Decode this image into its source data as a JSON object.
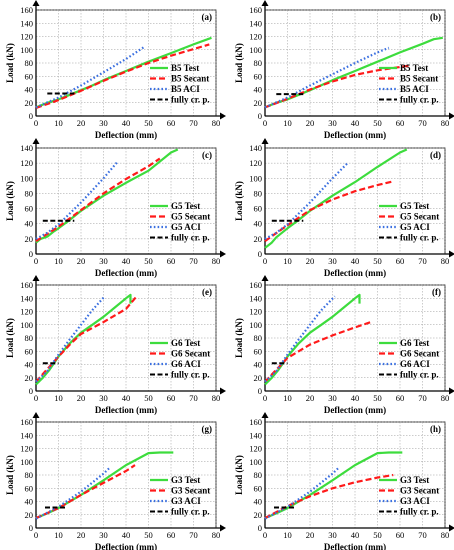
{
  "colors": {
    "test": "#3ddc3d",
    "secant": "#ff1a1a",
    "aci": "#3a6fe0",
    "fully": "#000000"
  },
  "chart_data": [
    {
      "panel_label": "(a)",
      "type": "line",
      "xlabel": "Deflection (mm)",
      "ylabel": "Load (kN)",
      "xlim": [
        0,
        80
      ],
      "ylim": [
        0,
        160
      ],
      "xticks": [
        0,
        10,
        20,
        30,
        40,
        50,
        60,
        70,
        80
      ],
      "yticks": [
        0,
        20,
        40,
        60,
        80,
        100,
        120,
        140,
        160
      ],
      "series": [
        {
          "name": "B5 Test",
          "style": "test",
          "x": [
            0,
            5,
            10,
            15,
            20,
            25,
            30,
            40,
            50,
            60,
            70,
            78
          ],
          "y": [
            13,
            20,
            25,
            32,
            39,
            46,
            54,
            68,
            82,
            95,
            108,
            118
          ]
        },
        {
          "name": "B5 Secant",
          "style": "secant",
          "x": [
            0,
            10,
            20,
            30,
            40,
            50,
            60,
            70,
            77
          ],
          "y": [
            12,
            24,
            38,
            53,
            67,
            80,
            91,
            101,
            108
          ]
        },
        {
          "name": "B5 ACI",
          "style": "aci",
          "x": [
            0,
            10,
            20,
            30,
            40,
            48
          ],
          "y": [
            13,
            28,
            46,
            66,
            86,
            104
          ]
        },
        {
          "name": "fully cr. p.",
          "style": "fully",
          "x": [
            5,
            17
          ],
          "y": [
            34,
            34
          ]
        }
      ]
    },
    {
      "panel_label": "(b)",
      "type": "line",
      "xlabel": "Deflection (mm)",
      "ylabel": "Load (kN)",
      "xlim": [
        0,
        80
      ],
      "ylim": [
        0,
        160
      ],
      "xticks": [
        0,
        10,
        20,
        30,
        40,
        50,
        60,
        70,
        80
      ],
      "yticks": [
        0,
        20,
        40,
        60,
        80,
        100,
        120,
        140,
        160
      ],
      "series": [
        {
          "name": "B5 Test",
          "style": "test",
          "x": [
            0,
            5,
            10,
            15,
            20,
            30,
            40,
            50,
            60,
            70,
            75,
            79
          ],
          "y": [
            13,
            20,
            25,
            32,
            39,
            54,
            68,
            82,
            96,
            109,
            116,
            118
          ]
        },
        {
          "name": "B5 Secant",
          "style": "secant",
          "x": [
            0,
            10,
            20,
            30,
            40,
            50,
            60,
            64
          ],
          "y": [
            13,
            26,
            40,
            52,
            62,
            69,
            74,
            76
          ]
        },
        {
          "name": "B5 ACI",
          "style": "aci",
          "x": [
            0,
            10,
            20,
            30,
            40,
            50,
            55
          ],
          "y": [
            13,
            28,
            46,
            63,
            80,
            96,
            103
          ]
        },
        {
          "name": "fully cr. p.",
          "style": "fully",
          "x": [
            5,
            17
          ],
          "y": [
            33,
            33
          ]
        }
      ]
    },
    {
      "panel_label": "(c)",
      "type": "line",
      "xlabel": "Deflection (mm)",
      "ylabel": "Load (kN)",
      "xlim": [
        0,
        80
      ],
      "ylim": [
        0,
        140
      ],
      "xticks": [
        0,
        10,
        20,
        30,
        40,
        50,
        60,
        70,
        80
      ],
      "yticks": [
        0,
        20,
        40,
        60,
        80,
        100,
        120,
        140
      ],
      "series": [
        {
          "name": "G5 Test",
          "style": "test",
          "x": [
            0,
            2,
            5,
            8,
            10,
            15,
            20,
            30,
            40,
            50,
            60,
            63
          ],
          "y": [
            15,
            20,
            23,
            30,
            34,
            45,
            57,
            77,
            94,
            110,
            134,
            138
          ]
        },
        {
          "name": "G5 Secant",
          "style": "secant",
          "x": [
            0,
            10,
            20,
            30,
            40,
            50,
            55
          ],
          "y": [
            17,
            36,
            58,
            80,
            99,
            116,
            126
          ]
        },
        {
          "name": "G5 ACI",
          "style": "aci",
          "x": [
            0,
            5,
            10,
            20,
            30,
            36
          ],
          "y": [
            20,
            28,
            39,
            68,
            100,
            121
          ]
        },
        {
          "name": "fully cr. p.",
          "style": "fully",
          "x": [
            3,
            17
          ],
          "y": [
            44,
            44
          ]
        }
      ]
    },
    {
      "panel_label": "(d)",
      "type": "line",
      "xlabel": "Deflection (mm)",
      "ylabel": "Load (kN)",
      "xlim": [
        0,
        80
      ],
      "ylim": [
        0,
        140
      ],
      "xticks": [
        0,
        10,
        20,
        30,
        40,
        50,
        60,
        70,
        80
      ],
      "yticks": [
        0,
        20,
        40,
        60,
        80,
        100,
        120,
        140
      ],
      "series": [
        {
          "name": "G5 Test",
          "style": "test",
          "x": [
            0,
            3,
            5,
            10,
            15,
            20,
            30,
            40,
            50,
            60,
            63
          ],
          "y": [
            8,
            15,
            22,
            34,
            45,
            57,
            77,
            95,
            115,
            134,
            138
          ]
        },
        {
          "name": "G5 Secant",
          "style": "secant",
          "x": [
            0,
            10,
            20,
            30,
            40,
            50,
            57
          ],
          "y": [
            17,
            38,
            58,
            72,
            83,
            91,
            96
          ]
        },
        {
          "name": "G5 ACI",
          "style": "aci",
          "x": [
            0,
            5,
            10,
            20,
            30,
            37
          ],
          "y": [
            20,
            28,
            39,
            68,
            100,
            121
          ]
        },
        {
          "name": "fully cr. p.",
          "style": "fully",
          "x": [
            3,
            17
          ],
          "y": [
            44,
            44
          ]
        }
      ]
    },
    {
      "panel_label": "(e)",
      "type": "line",
      "xlabel": "Deflection (mm)",
      "ylabel": "Load (kN)",
      "xlim": [
        0,
        80
      ],
      "ylim": [
        0,
        160
      ],
      "xticks": [
        0,
        10,
        20,
        30,
        40,
        50,
        60,
        70,
        80
      ],
      "yticks": [
        0,
        20,
        40,
        60,
        80,
        100,
        120,
        140,
        160
      ],
      "series": [
        {
          "name": "G6 Test",
          "style": "test",
          "x": [
            0,
            3,
            6,
            10,
            15,
            20,
            25,
            30,
            35,
            40,
            42,
            42
          ],
          "y": [
            10,
            20,
            32,
            52,
            72,
            88,
            100,
            112,
            126,
            140,
            145,
            132
          ]
        },
        {
          "name": "G6 Secant",
          "style": "secant",
          "x": [
            0,
            10,
            15,
            20,
            30,
            40,
            45
          ],
          "y": [
            14,
            52,
            70,
            86,
            104,
            124,
            144
          ]
        },
        {
          "name": "G6 ACI",
          "style": "aci",
          "x": [
            0,
            5,
            10,
            15,
            20,
            25,
            30
          ],
          "y": [
            14,
            30,
            55,
            78,
            100,
            122,
            141
          ]
        },
        {
          "name": "fully cr. p.",
          "style": "fully",
          "x": [
            3,
            10
          ],
          "y": [
            42,
            42
          ]
        }
      ]
    },
    {
      "panel_label": "(f)",
      "type": "line",
      "xlabel": "Deflection (mm)",
      "ylabel": "Load (kN)",
      "xlim": [
        0,
        80
      ],
      "ylim": [
        0,
        160
      ],
      "xticks": [
        0,
        10,
        20,
        30,
        40,
        50,
        60,
        70,
        80
      ],
      "yticks": [
        0,
        20,
        40,
        60,
        80,
        100,
        120,
        140,
        160
      ],
      "series": [
        {
          "name": "G6 Test",
          "style": "test",
          "x": [
            0,
            3,
            6,
            10,
            15,
            20,
            25,
            30,
            35,
            40,
            42,
            42
          ],
          "y": [
            10,
            20,
            32,
            52,
            72,
            88,
            100,
            112,
            126,
            140,
            145,
            132
          ]
        },
        {
          "name": "G6 Secant",
          "style": "secant",
          "x": [
            0,
            10,
            20,
            30,
            40,
            47
          ],
          "y": [
            14,
            50,
            70,
            84,
            96,
            104
          ]
        },
        {
          "name": "G6 ACI",
          "style": "aci",
          "x": [
            0,
            5,
            10,
            15,
            20,
            25,
            31
          ],
          "y": [
            14,
            30,
            55,
            78,
            100,
            122,
            143
          ]
        },
        {
          "name": "fully cr. p.",
          "style": "fully",
          "x": [
            3,
            10
          ],
          "y": [
            42,
            42
          ]
        }
      ]
    },
    {
      "panel_label": "(g)",
      "type": "line",
      "xlabel": "Deflection (mm)",
      "ylabel": "Load (kN)",
      "xlim": [
        0,
        80
      ],
      "ylim": [
        0,
        160
      ],
      "xticks": [
        0,
        10,
        20,
        30,
        40,
        50,
        60,
        70,
        80
      ],
      "yticks": [
        0,
        20,
        40,
        60,
        80,
        100,
        120,
        140,
        160
      ],
      "series": [
        {
          "name": "G3 Test",
          "style": "test",
          "x": [
            0,
            5,
            10,
            20,
            30,
            40,
            50,
            55,
            61
          ],
          "y": [
            15,
            22,
            30,
            50,
            72,
            95,
            113,
            114,
            114
          ]
        },
        {
          "name": "G3 Secant",
          "style": "secant",
          "x": [
            0,
            10,
            20,
            30,
            40,
            44
          ],
          "y": [
            15,
            30,
            50,
            68,
            86,
            95
          ]
        },
        {
          "name": "G3 ACI",
          "style": "aci",
          "x": [
            0,
            10,
            20,
            30,
            33
          ],
          "y": [
            14,
            32,
            55,
            82,
            92
          ]
        },
        {
          "name": "fully cr. p.",
          "style": "fully",
          "x": [
            4,
            14
          ],
          "y": [
            31,
            31
          ]
        }
      ]
    },
    {
      "panel_label": "(h)",
      "type": "line",
      "xlabel": "Deflection (mm)",
      "ylabel": "Load (kN)",
      "xlim": [
        0,
        80
      ],
      "ylim": [
        0,
        160
      ],
      "xticks": [
        0,
        10,
        20,
        30,
        40,
        50,
        60,
        70,
        80
      ],
      "yticks": [
        0,
        20,
        40,
        60,
        80,
        100,
        120,
        140,
        160
      ],
      "series": [
        {
          "name": "G3 Test",
          "style": "test",
          "x": [
            0,
            5,
            10,
            20,
            30,
            40,
            50,
            55,
            61
          ],
          "y": [
            15,
            22,
            30,
            50,
            72,
            95,
            113,
            114,
            114
          ]
        },
        {
          "name": "G3 Secant",
          "style": "secant",
          "x": [
            0,
            10,
            20,
            30,
            40,
            50,
            57
          ],
          "y": [
            15,
            33,
            48,
            60,
            69,
            76,
            80
          ]
        },
        {
          "name": "G3 ACI",
          "style": "aci",
          "x": [
            0,
            10,
            20,
            30,
            33
          ],
          "y": [
            14,
            32,
            55,
            82,
            92
          ]
        },
        {
          "name": "fully cr. p.",
          "style": "fully",
          "x": [
            4,
            14
          ],
          "y": [
            31,
            31
          ]
        }
      ]
    }
  ]
}
